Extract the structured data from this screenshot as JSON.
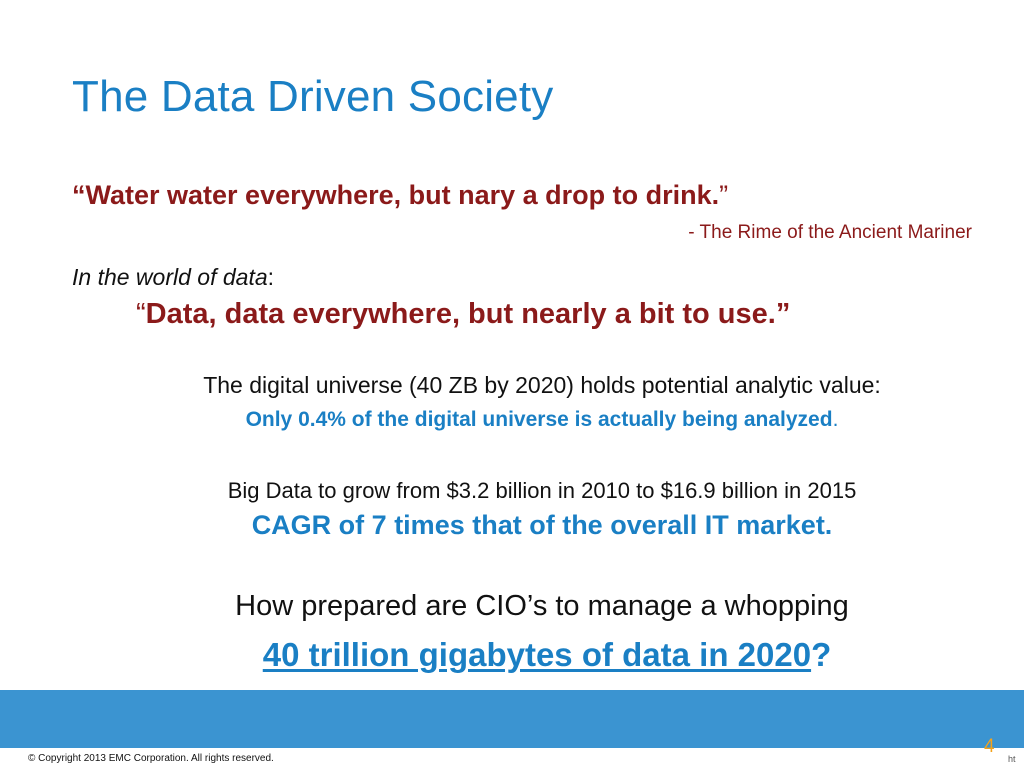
{
  "slide": {
    "title": "The Data Driven Society",
    "quote_original": {
      "text": "“Water water everywhere, but nary a drop to drink.",
      "close_mark": "”",
      "attribution": "- The Rime of the Ancient Mariner"
    },
    "intro": {
      "italic_text": "In the world of data",
      "colon": ":"
    },
    "quote_data": {
      "open_mark": "“",
      "text": "Data, data everywhere, but nearly a bit to use.”"
    },
    "digital_universe": {
      "line": "The digital universe (40 ZB by 2020) holds potential analytic value:",
      "highlight": "Only 0.4% of the digital universe is actually being analyzed",
      "period": "."
    },
    "big_data": {
      "line": "Big Data to grow from $3.2 billion in 2010 to  $16.9 billion in 2015",
      "highlight": "CAGR of 7 times that of the overall IT market."
    },
    "question": {
      "line": "How prepared are CIO’s to manage a whopping",
      "link_text": "40 trillion gigabytes of data in 2020",
      "question_mark": "?"
    },
    "footer": {
      "copyright": "© Copyright 2013   EMC Corporation. All rights reserved.",
      "page_number": "4",
      "fragment": "ht"
    },
    "colors": {
      "title_blue": "#1a7fc4",
      "quote_red": "#8b1a1a",
      "band_blue": "#3b94d1",
      "page_number_orange": "#f4a21a"
    }
  }
}
